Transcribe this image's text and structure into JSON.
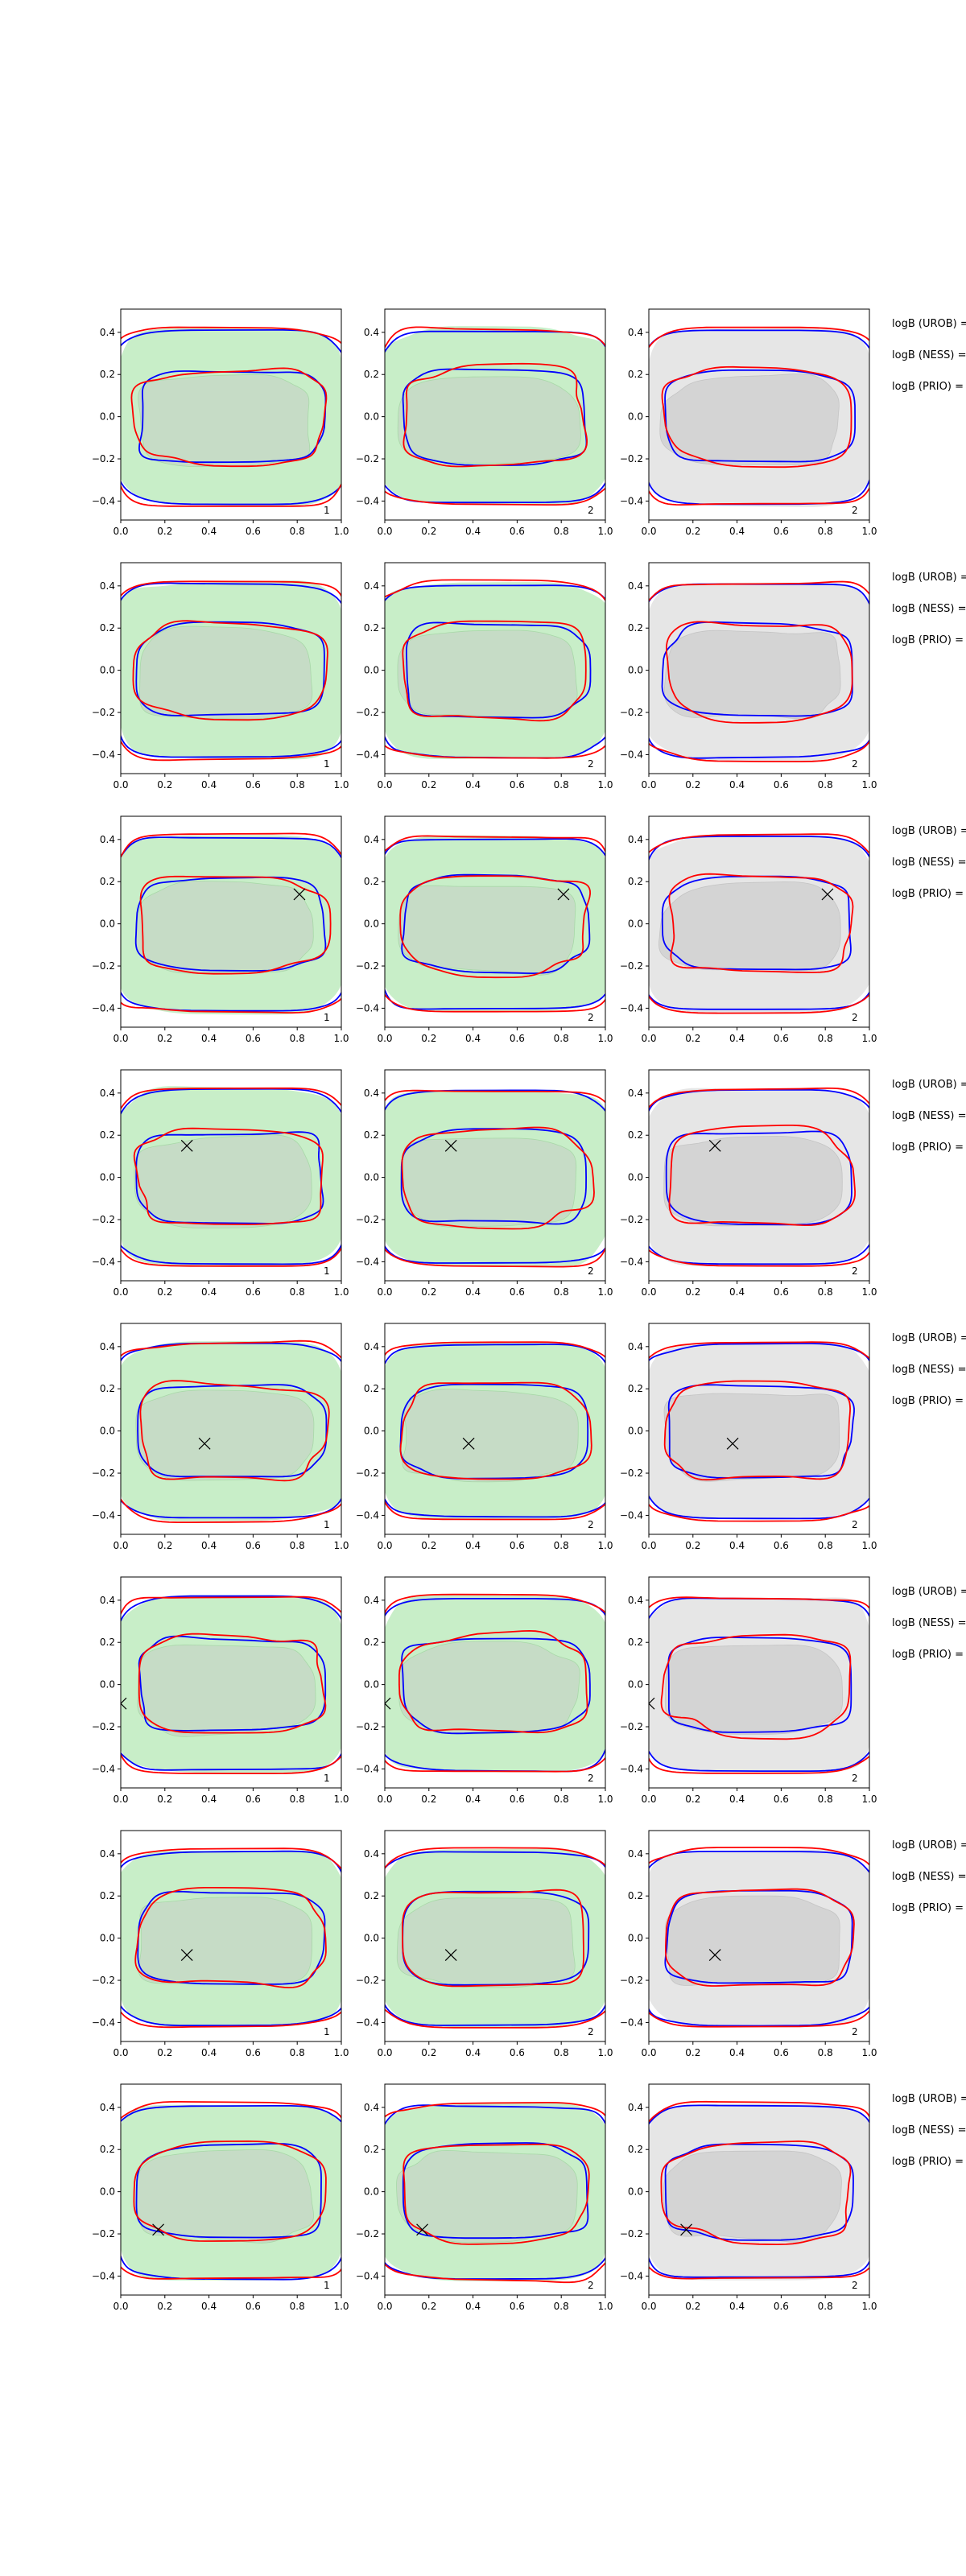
{
  "chart_data": {
    "type": "contour-grid",
    "title": "",
    "rows": 8,
    "cols": 3,
    "xlim": [
      0.0,
      1.0
    ],
    "ylim": [
      -0.49,
      0.51
    ],
    "xticks": [
      0.0,
      0.2,
      0.4,
      0.6,
      0.8,
      1.0
    ],
    "xtick_labels": [
      "0.0",
      "0.2",
      "0.4",
      "0.6",
      "0.8",
      "1.0"
    ],
    "yticks": [
      -0.4,
      -0.2,
      0.0,
      0.2,
      0.4
    ],
    "ytick_labels": [
      "−0.4",
      "−0.2",
      "0.0",
      "0.2",
      "0.4"
    ],
    "grid": false,
    "colors": {
      "contour_a": "#0000ff",
      "contour_b": "#ff0000",
      "fill_green_outer": "#c8eec8",
      "fill_green_inner": "#c6dcc6",
      "fill_gray_outer": "#e6e6e6",
      "fill_gray_inner": "#d4d4d4",
      "marker": "#000000"
    },
    "columns": [
      {
        "fill": "green",
        "panel_label": "1"
      },
      {
        "fill": "green",
        "panel_label": "2"
      },
      {
        "fill": "gray",
        "panel_label": "2"
      }
    ],
    "row_annotations": [
      "logB (UROB) =",
      "logB (NESS) =",
      "logB (PRIO) ="
    ],
    "panels_rows": [
      {
        "marker": null
      },
      {
        "marker": null
      },
      {
        "marker": {
          "x": 0.81,
          "y": 0.14
        }
      },
      {
        "marker": {
          "x": 0.3,
          "y": 0.15
        }
      },
      {
        "marker": {
          "x": 0.38,
          "y": -0.06
        }
      },
      {
        "marker": {
          "x": 0.0,
          "y": -0.09
        }
      },
      {
        "marker": {
          "x": 0.3,
          "y": -0.08
        }
      },
      {
        "marker": {
          "x": 0.17,
          "y": -0.18
        }
      }
    ],
    "contour_levels": [
      "outer",
      "inner"
    ],
    "series": [
      {
        "name": "blue contours",
        "color": "#0000ff"
      },
      {
        "name": "red contours",
        "color": "#ff0000"
      },
      {
        "name": "filled density",
        "color": "green / gray"
      }
    ]
  }
}
